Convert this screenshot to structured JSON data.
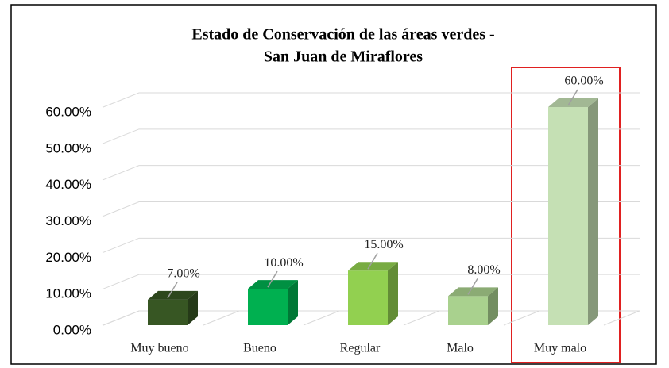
{
  "chart_data": {
    "type": "bar3d",
    "title": [
      "Estado de Conservación de las áreas verdes -",
      "San Juan de Miraflores"
    ],
    "categories": [
      "Muy bueno",
      "Bueno",
      "Regular",
      "Malo",
      "Muy malo"
    ],
    "values": [
      7,
      10,
      15,
      8,
      60
    ],
    "value_labels": [
      "7.00%",
      "10.00%",
      "15.00%",
      "8.00%",
      "60.00%"
    ],
    "colors": [
      "#375623",
      "#00b050",
      "#92d050",
      "#a9d18e",
      "#c5e0b4"
    ],
    "ylim": [
      0,
      60
    ],
    "yticks": [
      {
        "value": 0,
        "label": "0.00%"
      },
      {
        "value": 10,
        "label": "10.00%"
      },
      {
        "value": 20,
        "label": "20.00%"
      },
      {
        "value": 30,
        "label": "30.00%"
      },
      {
        "value": 40,
        "label": "40.00%"
      },
      {
        "value": 50,
        "label": "50.00%"
      },
      {
        "value": 60,
        "label": "60.00%"
      }
    ],
    "grid": true
  }
}
